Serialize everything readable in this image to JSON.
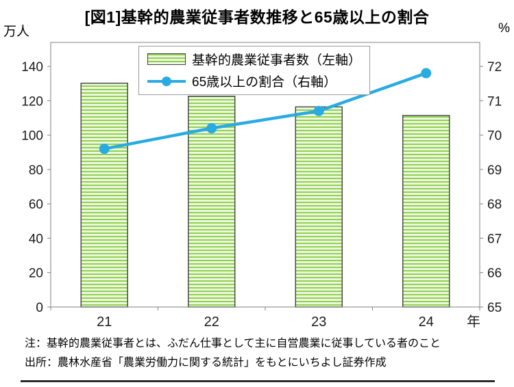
{
  "title": "[図1]基幹的農業従事者数推移と65歳以上の割合",
  "legend": {
    "bar_label": "基幹的農業従事者数（左軸）",
    "line_label": "65歳以上の割合（右軸）"
  },
  "notes": {
    "note1": "注：基幹的農業従事者とは、ふだん仕事として主に自営農業に従事している者のこと",
    "note2": "出所：農林水産省「農業労働力に関する統計」をもとにいちよし証券作成"
  },
  "colors": {
    "bar_stripe": "#92d050",
    "bar_bg": "#ecf8df",
    "bar_border": "#404040",
    "line": "#29abe2",
    "axis": "#808080",
    "text": "#1a1a1a"
  },
  "chart_data": {
    "type": "combo-bar-line",
    "categories": [
      "21",
      "22",
      "23",
      "24"
    ],
    "x_suffix": "年",
    "series": [
      {
        "name": "基幹的農業従事者数（左軸）",
        "type": "bar",
        "axis": "left",
        "values": [
          130.2,
          122.6,
          116.4,
          111.4
        ]
      },
      {
        "name": "65歳以上の割合（右軸）",
        "type": "line",
        "axis": "right",
        "values": [
          69.6,
          70.2,
          70.7,
          71.8
        ]
      }
    ],
    "left_axis": {
      "unit": "万人",
      "min": 0,
      "max": 140,
      "step": 20,
      "ticks": [
        0,
        20,
        40,
        60,
        80,
        100,
        120,
        140
      ]
    },
    "right_axis": {
      "unit": "%",
      "min": 65,
      "max": 72,
      "step": 1,
      "ticks": [
        65,
        66,
        67,
        68,
        69,
        70,
        71,
        72
      ]
    },
    "grid": false,
    "legend_position": "top-inside"
  }
}
